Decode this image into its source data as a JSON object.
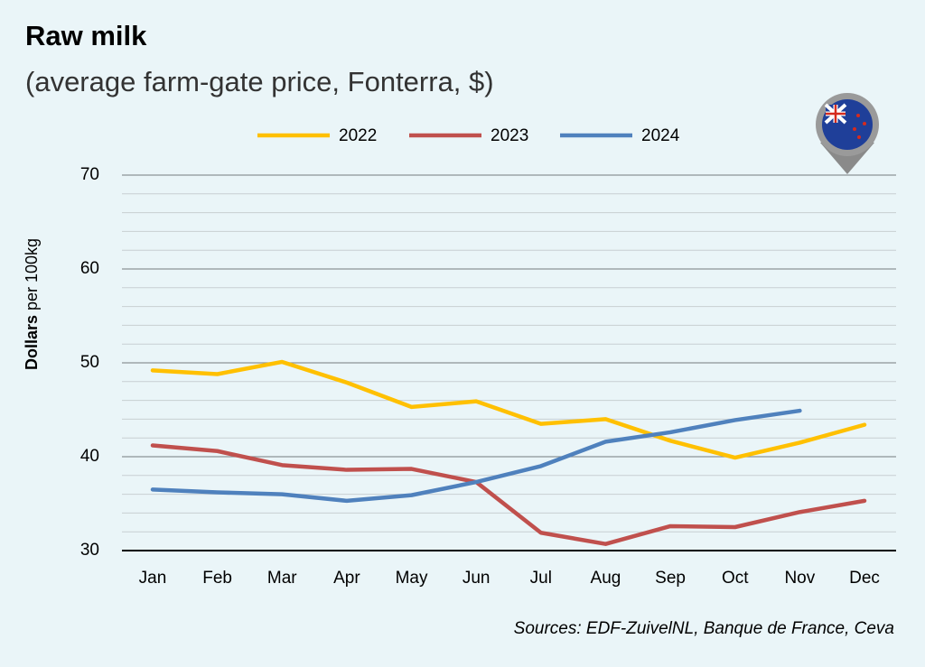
{
  "chart_data": {
    "type": "line",
    "title": "Raw milk",
    "subtitle": "(average farm-gate price, Fonterra, $)",
    "y_label": {
      "bold": "Dollars",
      "rest": "per 100kg"
    },
    "source": "Sources: EDF-ZuivelNL, Banque de France, Ceva",
    "categories": [
      "Jan",
      "Feb",
      "Mar",
      "Apr",
      "May",
      "Jun",
      "Jul",
      "Aug",
      "Sep",
      "Oct",
      "Nov",
      "Dec"
    ],
    "series": [
      {
        "name": "2022",
        "color": "#ffc000",
        "values": [
          49.2,
          48.8,
          50.1,
          47.9,
          45.3,
          45.9,
          43.5,
          44.0,
          41.7,
          39.9,
          41.5,
          43.4
        ]
      },
      {
        "name": "2023",
        "color": "#c0504d",
        "values": [
          41.2,
          40.6,
          39.1,
          38.6,
          38.7,
          37.3,
          31.9,
          30.7,
          32.6,
          32.5,
          34.1,
          35.3
        ]
      },
      {
        "name": "2024",
        "color": "#4f81bd",
        "values": [
          36.5,
          36.2,
          36.0,
          35.3,
          35.9,
          37.3,
          39.0,
          41.6,
          42.6,
          43.9,
          44.9,
          null
        ]
      }
    ],
    "ylim": [
      30,
      70
    ],
    "yticks": [
      30,
      40,
      50,
      60,
      70
    ],
    "minor_yticks": [
      32,
      34,
      36,
      38,
      42,
      44,
      46,
      48,
      52,
      54,
      56,
      58,
      62,
      64,
      66,
      68
    ],
    "grid": true,
    "legend": "top"
  }
}
